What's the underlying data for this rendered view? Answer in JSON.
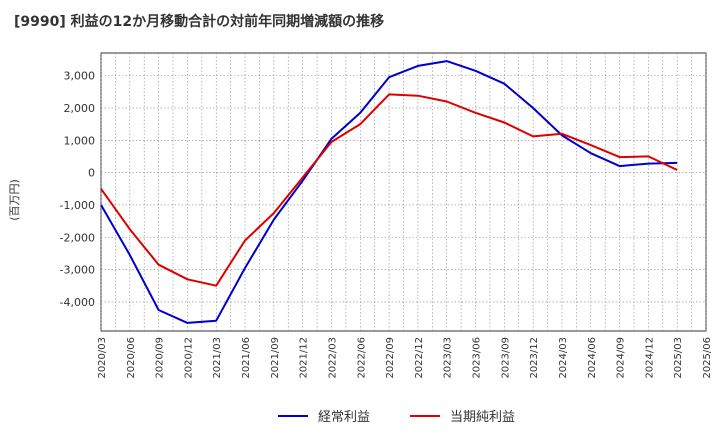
{
  "chart_data": {
    "type": "line",
    "title": "[9990]  利益の12か月移動合計の対前年同期増減額の推移",
    "ylabel": "(百万円)",
    "xlabel": "",
    "ylim": [
      -4900,
      3700
    ],
    "yticks": [
      -4000,
      -3000,
      -2000,
      -1000,
      0,
      1000,
      2000,
      3000
    ],
    "ytick_labels": [
      "-4,000",
      "-3,000",
      "-2,000",
      "-1,000",
      "0",
      "1,000",
      "2,000",
      "3,000"
    ],
    "categories": [
      "2020/03",
      "2020/06",
      "2020/09",
      "2020/12",
      "2021/03",
      "2021/06",
      "2021/09",
      "2021/12",
      "2022/03",
      "2022/06",
      "2022/09",
      "2022/12",
      "2023/03",
      "2023/06",
      "2023/09",
      "2023/12",
      "2024/03",
      "2024/06",
      "2024/09",
      "2024/12",
      "2025/03",
      "2025/06"
    ],
    "grid": true,
    "legend_position": "bottom",
    "series": [
      {
        "name": "経常利益",
        "color": "#0000cc",
        "values": [
          -1000,
          -2550,
          -4250,
          -4650,
          -4580,
          -2950,
          -1450,
          -250,
          1050,
          1850,
          2950,
          3300,
          3450,
          3150,
          2750,
          2000,
          1150,
          600,
          200,
          280,
          300,
          null
        ]
      },
      {
        "name": "当期純利益",
        "color": "#dd0000",
        "values": [
          -500,
          -1750,
          -2850,
          -3300,
          -3500,
          -2100,
          -1250,
          -150,
          950,
          1500,
          2420,
          2380,
          2200,
          1850,
          1550,
          1120,
          1200,
          850,
          480,
          500,
          80,
          null
        ]
      }
    ]
  }
}
